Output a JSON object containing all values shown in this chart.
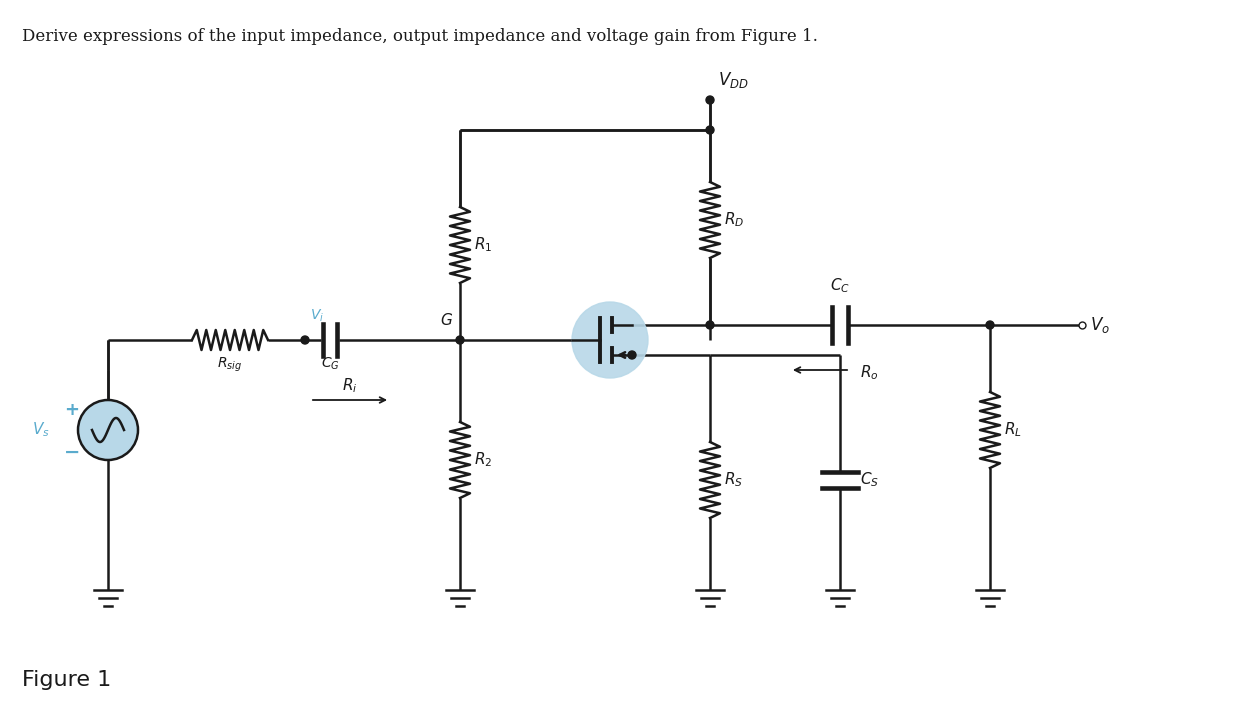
{
  "title": "Derive expressions of the input impedance, output impedance and voltage gain from Figure 1.",
  "figure_label": "Figure 1",
  "bg_color": "#ffffff",
  "line_color": "#1a1a1a",
  "blue_light": "#b8d8e8",
  "label_color_blue": "#5aabcd",
  "title_fontsize": 12,
  "label_fontsize": 12,
  "figsize": [
    12.44,
    7.2
  ],
  "dpi": 100
}
